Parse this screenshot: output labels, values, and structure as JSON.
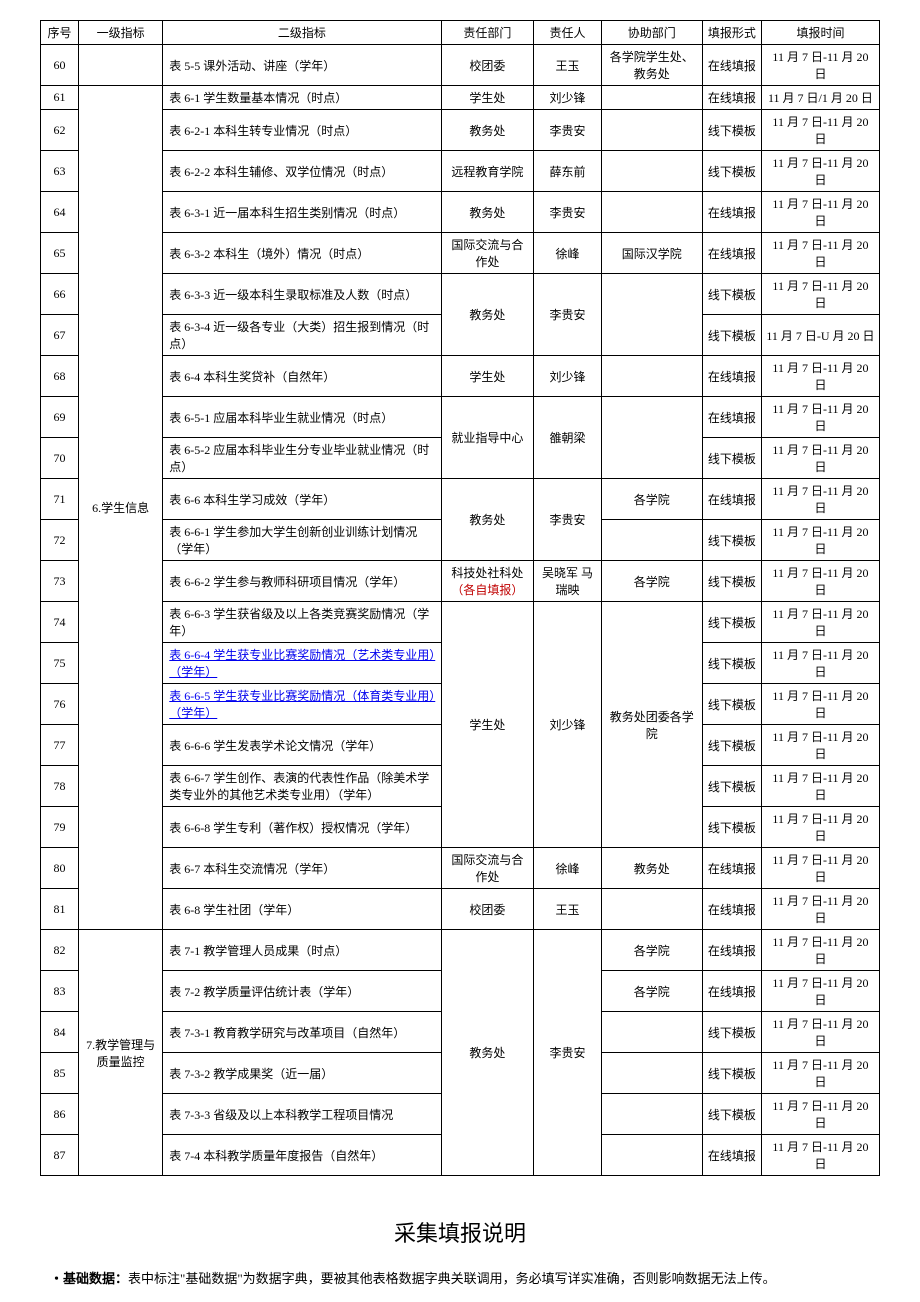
{
  "headers": {
    "seq": "序号",
    "l1": "一级指标",
    "l2": "二级指标",
    "dept": "责任部门",
    "person": "责任人",
    "assist": "协助部门",
    "form": "填报形式",
    "time": "填报时间"
  },
  "groups": {
    "g6": "6.学生信息",
    "g7": "7.教学管理与质量监控"
  },
  "rows": [
    {
      "seq": "60",
      "l2": "表 5-5 课外活动、讲座（学年）",
      "dept": "校团委",
      "person": "王玉",
      "assist": "各学院学生处、教务处",
      "form": "在线填报",
      "time": "11 月 7 日-11 月 20 日"
    },
    {
      "seq": "61",
      "l2": "表 6-1 学生数量基本情况（时点）",
      "dept": "学生处",
      "person": "刘少锋",
      "assist": "",
      "form": "在线填报",
      "time": "11 月 7 日/1 月 20 日"
    },
    {
      "seq": "62",
      "l2": "表 6-2-1 本科生转专业情况（时点）",
      "dept": "教务处",
      "person": "李贵安",
      "assist": "",
      "form": "线下模板",
      "time": "11 月 7 日-11 月 20 日"
    },
    {
      "seq": "63",
      "l2": "表 6-2-2 本科生辅修、双学位情况（时点）",
      "dept": "远程教育学院",
      "person": "薛东前",
      "assist": "",
      "form": "线下模板",
      "time": "11 月 7 日-11 月 20 日"
    },
    {
      "seq": "64",
      "l2": "表 6-3-1 近一届本科生招生类别情况（时点）",
      "dept": "教务处",
      "person": "李贵安",
      "assist": "",
      "form": "在线填报",
      "time": "11 月 7 日-11 月 20 日"
    },
    {
      "seq": "65",
      "l2": "表 6-3-2 本科生（境外）情况（时点）",
      "dept": "国际交流与合作处",
      "person": "徐峰",
      "assist": "国际汉学院",
      "form": "在线填报",
      "time": "11 月 7 日-11 月 20 日"
    },
    {
      "seq": "66",
      "l2": "表 6-3-3 近一级本科生录取标准及人数（时点）",
      "form": "线下模板",
      "time": "11 月 7 日-11 月 20 日"
    },
    {
      "seq": "67",
      "l2": "表 6-3-4 近一级各专业（大类）招生报到情况（时点）",
      "form": "线下模板",
      "time": "11 月 7 日-U 月 20 日"
    },
    {
      "seq": "68",
      "l2": "表 6-4 本科生奖贷补（自然年）",
      "dept": "学生处",
      "person": "刘少锋",
      "assist": "",
      "form": "在线填报",
      "time": "11 月 7 日-11 月 20 日"
    },
    {
      "seq": "69",
      "l2": "表 6-5-1 应届本科毕业生就业情况（时点）",
      "form": "在线填报",
      "time": "11 月 7 日-11 月 20 日"
    },
    {
      "seq": "70",
      "l2": "表 6-5-2 应届本科毕业生分专业毕业就业情况（时点）",
      "form": "线下模板",
      "time": "11 月 7 日-11 月 20 日"
    },
    {
      "seq": "71",
      "l2": "表 6-6 本科生学习成效（学年）",
      "assist": "各学院",
      "form": "在线填报",
      "time": "11 月 7 日-11 月 20 日"
    },
    {
      "seq": "72",
      "l2": "表 6-6-1 学生参加大学生创新创业训练计划情况（学年）",
      "assist": "",
      "form": "线下模板",
      "time": "11 月 7 日-11 月 20 日"
    },
    {
      "seq": "73",
      "l2": "表 6-6-2 学生参与教师科研项目情况（学年）",
      "dept": "科技处社科处",
      "deptExtra": "（各自填报）",
      "person": "吴晓军 马瑞映",
      "assist": "各学院",
      "form": "线下模板",
      "time": "11 月 7 日-11 月 20 日"
    },
    {
      "seq": "74",
      "l2": "表 6-6-3 学生获省级及以上各类竞赛奖励情况（学年）",
      "form": "线下模板",
      "time": "11 月 7 日-11 月 20 日"
    },
    {
      "seq": "75",
      "l2": "表 6-6-4 学生获专业比赛奖励情况（艺术类专业用）（学年）",
      "link": true,
      "form": "线下模板",
      "time": "11 月 7 日-11 月 20 日"
    },
    {
      "seq": "76",
      "l2": "表 6-6-5 学生获专业比赛奖励情况（体育类专业用）（学年）",
      "link": true,
      "form": "线下模板",
      "time": "11 月 7 日-11 月 20 日"
    },
    {
      "seq": "77",
      "l2": "表 6-6-6 学生发表学术论文情况（学年）",
      "form": "线下模板",
      "time": "11 月 7 日-11 月 20 日"
    },
    {
      "seq": "78",
      "l2": "表 6-6-7 学生创作、表演的代表性作品（除美术学类专业外的其他艺术类专业用）（学年）",
      "form": "线下模板",
      "time": "11 月 7 日-11 月 20 日"
    },
    {
      "seq": "79",
      "l2": "表 6-6-8 学生专利（著作权）授权情况（学年）",
      "form": "线下模板",
      "time": "11 月 7 日-11 月 20 日"
    },
    {
      "seq": "80",
      "l2": "表 6-7 本科生交流情况（学年）",
      "dept": "国际交流与合作处",
      "person": "徐峰",
      "assist": "教务处",
      "form": "在线填报",
      "time": "11 月 7 日-11 月 20 日"
    },
    {
      "seq": "81",
      "l2": "表 6-8 学生社团（学年）",
      "dept": "校团委",
      "person": "王玉",
      "assist": "",
      "form": "在线填报",
      "time": "11 月 7 日-11 月 20 日"
    },
    {
      "seq": "82",
      "l2": "表 7-1 教学管理人员成果（时点）",
      "assist": "各学院",
      "form": "在线填报",
      "time": "11 月 7 日-11 月 20 日"
    },
    {
      "seq": "83",
      "l2": "表 7-2 教学质量评估统计表（学年）",
      "assist": "各学院",
      "form": "在线填报",
      "time": "11 月 7 日-11 月 20 日"
    },
    {
      "seq": "84",
      "l2": "表 7-3-1 教育教学研究与改革项目（自然年）",
      "assist": "",
      "form": "线下模板",
      "time": "11 月 7 日-11 月 20 日"
    },
    {
      "seq": "85",
      "l2": "表 7-3-2 教学成果奖（近一届）",
      "assist": "",
      "form": "线下模板",
      "time": "11 月 7 日-11 月 20 日"
    },
    {
      "seq": "86",
      "l2": "表 7-3-3 省级及以上本科教学工程项目情况",
      "assist": "",
      "form": "线下模板",
      "time": "11 月 7 日-11 月 20 日"
    },
    {
      "seq": "87",
      "l2": "表 7-4 本科教学质量年度报告（自然年）",
      "assist": "",
      "form": "在线填报",
      "time": "11 月 7 日-11 月 20 日"
    }
  ],
  "merged": {
    "dept_6667": "教务处",
    "person_6667": "李贵安",
    "dept_6970": "就业指导中心",
    "person_6970": "雒朝梁",
    "dept_7172": "教务处",
    "person_7172": "李贵安",
    "dept_7479": "学生处",
    "person_7479": "刘少锋",
    "assist_7479": "教务处团委各学院",
    "dept_8287": "教务处",
    "person_8287": "李贵安"
  },
  "footer": {
    "title": "采集填报说明",
    "note_label": "・基础数据：",
    "note_body": "表中标注\"基础数据\"为数据字典，要被其他表格数据字典关联调用，务必填写详实准确，否则影响数据无法上传。"
  }
}
